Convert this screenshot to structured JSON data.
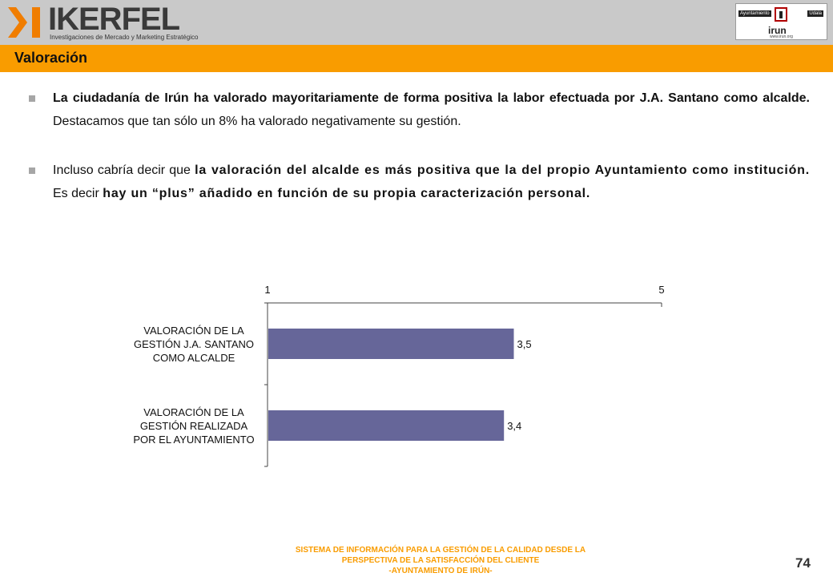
{
  "header": {
    "logo_name": "IKERFEL",
    "logo_subtitle": "Investigaciones de Mercado y Marketing Estratégico",
    "partner_logo": {
      "left_label": "Ayuntamiento",
      "right_label": "Udala",
      "word": "irun",
      "url": "www.irun.org"
    }
  },
  "section_title": "Valoración",
  "bullets": [
    {
      "parts": [
        {
          "text": "La ciudadanía de Irún ha valorado mayoritariamente de forma positiva la labor efectuada por J.A. Santano como alcalde.",
          "style": "bold"
        },
        {
          "text": " Destacamos que tan sólo un 8% ha valorado negativamente su gestión.",
          "style": "normal"
        }
      ]
    },
    {
      "parts": [
        {
          "text": "Incluso cabría decir que ",
          "style": "normal"
        },
        {
          "text": "la valoración del alcalde es más positiva que la del propio Ayuntamiento como institución.",
          "style": "wide"
        },
        {
          "text": " Es decir ",
          "style": "normal"
        },
        {
          "text": "hay un “plus” añadido en función de su propia caracterización personal.",
          "style": "wide"
        }
      ]
    }
  ],
  "chart_data": {
    "type": "bar",
    "orientation": "horizontal",
    "categories": [
      "VALORACIÓN DE LA GESTIÓN J.A. SANTANO COMO ALCALDE",
      "VALORACIÓN DE LA GESTIÓN REALIZADA POR EL AYUNTAMIENTO"
    ],
    "category_lines": [
      [
        "VALORACIÓN DE LA",
        "GESTIÓN J.A. SANTANO",
        "COMO ALCALDE"
      ],
      [
        "VALORACIÓN DE LA",
        "GESTIÓN REALIZADA",
        "POR EL AYUNTAMIENTO"
      ]
    ],
    "values": [
      3.5,
      3.4
    ],
    "value_labels": [
      "3,5",
      "3,4"
    ],
    "xlim": [
      1,
      5
    ],
    "tick_labels": [
      "1",
      "5"
    ],
    "axis_position": "top",
    "bar_color": "#666699",
    "grid": false,
    "legend": "none",
    "title": "",
    "xlabel": "",
    "ylabel": ""
  },
  "footer": {
    "lines": [
      "SISTEMA DE INFORMACIÓN PARA LA GESTIÓN DE LA CALIDAD DESDE LA",
      "PERSPECTIVA DE LA SATISFACCIÓN DEL CLIENTE",
      "-AYUNTAMIENTO DE IRÚN-"
    ],
    "page_number": "74"
  },
  "colors": {
    "accent": "#f99c00",
    "header_bg": "#c9c9c9",
    "logo_orange": "#f07d00"
  }
}
